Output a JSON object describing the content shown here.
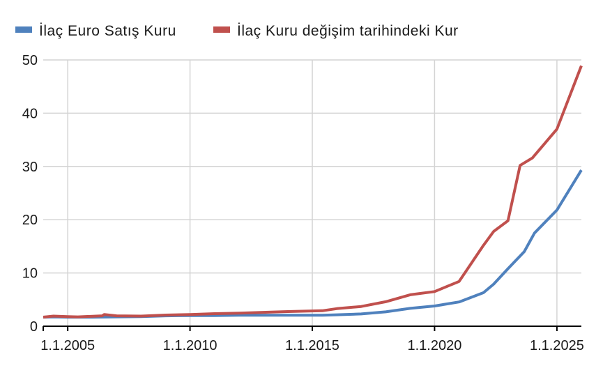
{
  "chart_data": {
    "type": "line",
    "title": "",
    "xlabel": "",
    "ylabel": "",
    "x_axis": "date",
    "xlim": [
      "2004-01-01",
      "2026-01-01"
    ],
    "ylim": [
      0,
      50
    ],
    "y_ticks": [
      0,
      10,
      20,
      30,
      40,
      50
    ],
    "x_ticks": [
      "2005-01-01",
      "2010-01-01",
      "2015-01-01",
      "2020-01-01",
      "2025-01-01"
    ],
    "x_tick_labels": [
      "1.1.2005",
      "1.1.2010",
      "1.1.2015",
      "1.1.2020",
      "1.1.2025"
    ],
    "grid": true,
    "legend_position": "top",
    "series": [
      {
        "name": "İlaç Euro Satış Kuru",
        "color": "#4f81bd",
        "points": [
          [
            "2004-01-01",
            1.7
          ],
          [
            "2004-06-01",
            1.75
          ],
          [
            "2005-01-01",
            1.7
          ],
          [
            "2006-01-01",
            1.7
          ],
          [
            "2007-01-01",
            1.75
          ],
          [
            "2008-01-01",
            1.8
          ],
          [
            "2009-01-01",
            1.95
          ],
          [
            "2010-01-01",
            2.0
          ],
          [
            "2011-01-01",
            2.0
          ],
          [
            "2012-01-01",
            2.05
          ],
          [
            "2013-01-01",
            2.05
          ],
          [
            "2014-01-01",
            2.05
          ],
          [
            "2015-06-01",
            2.05
          ],
          [
            "2016-01-01",
            2.15
          ],
          [
            "2017-01-01",
            2.3
          ],
          [
            "2018-01-01",
            2.7
          ],
          [
            "2019-01-01",
            3.35
          ],
          [
            "2020-01-01",
            3.8
          ],
          [
            "2021-01-01",
            4.55
          ],
          [
            "2022-01-01",
            6.3
          ],
          [
            "2022-06-01",
            7.9
          ],
          [
            "2023-01-01",
            10.8
          ],
          [
            "2023-09-01",
            14.0
          ],
          [
            "2024-02-01",
            17.5
          ],
          [
            "2025-01-01",
            21.8
          ],
          [
            "2026-01-01",
            29.3
          ]
        ]
      },
      {
        "name": "İlaç Kuru değişim tarihindeki Kur",
        "color": "#c0504d",
        "points": [
          [
            "2004-01-01",
            1.7
          ],
          [
            "2004-06-01",
            1.9
          ],
          [
            "2005-01-01",
            1.8
          ],
          [
            "2005-06-01",
            1.75
          ],
          [
            "2006-06-01",
            1.95
          ],
          [
            "2006-07-01",
            2.2
          ],
          [
            "2007-01-01",
            1.95
          ],
          [
            "2008-01-01",
            1.9
          ],
          [
            "2009-01-01",
            2.1
          ],
          [
            "2010-01-01",
            2.2
          ],
          [
            "2011-01-01",
            2.35
          ],
          [
            "2012-01-01",
            2.45
          ],
          [
            "2013-01-01",
            2.6
          ],
          [
            "2014-01-01",
            2.75
          ],
          [
            "2015-06-01",
            2.9
          ],
          [
            "2016-01-01",
            3.3
          ],
          [
            "2017-01-01",
            3.7
          ],
          [
            "2018-01-01",
            4.6
          ],
          [
            "2019-01-01",
            5.9
          ],
          [
            "2020-01-01",
            6.5
          ],
          [
            "2021-01-01",
            8.4
          ],
          [
            "2022-01-01",
            15.2
          ],
          [
            "2022-06-01",
            17.8
          ],
          [
            "2023-01-01",
            19.8
          ],
          [
            "2023-07-01",
            30.2
          ],
          [
            "2024-01-01",
            31.6
          ],
          [
            "2025-01-01",
            37.0
          ],
          [
            "2026-01-01",
            48.9
          ]
        ]
      }
    ]
  }
}
